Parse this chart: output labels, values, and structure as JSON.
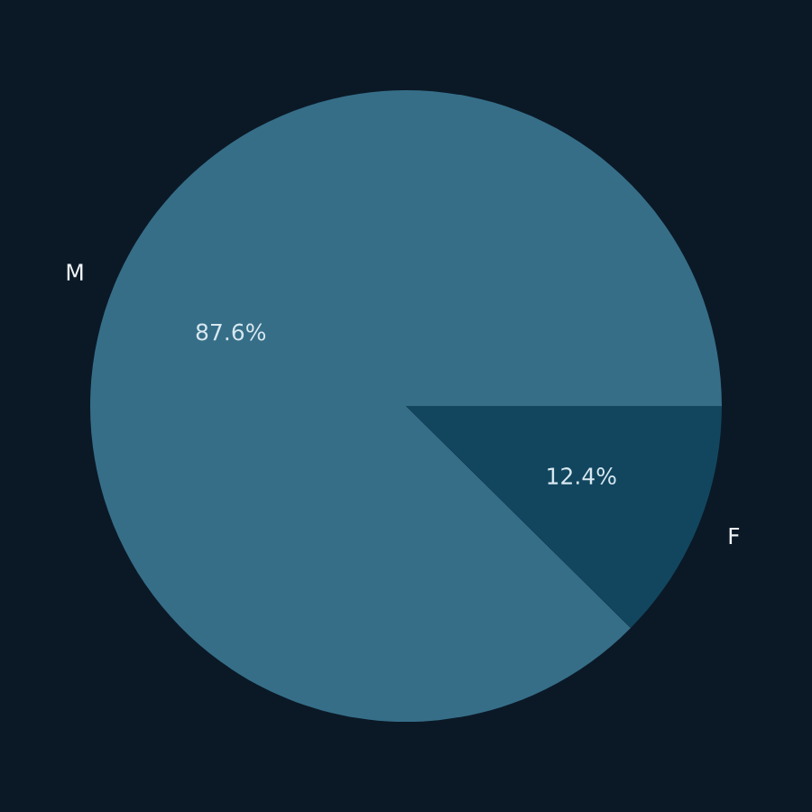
{
  "chart_data": {
    "type": "pie",
    "categories": [
      "M",
      "F"
    ],
    "values": [
      87.6,
      12.4
    ],
    "colors": [
      "#366e88",
      "#12465f"
    ],
    "value_labels": [
      "87.6%",
      "12.4%"
    ]
  }
}
